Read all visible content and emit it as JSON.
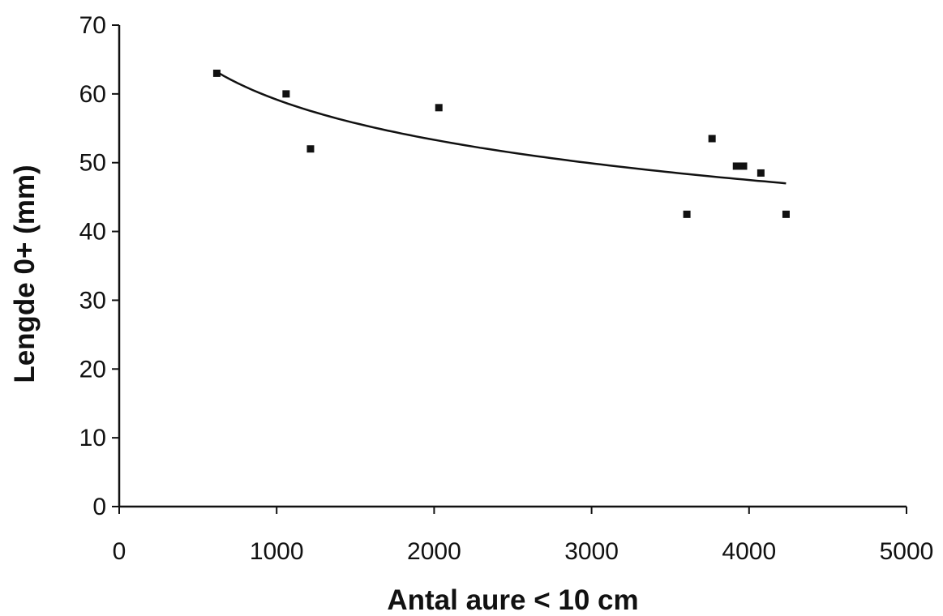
{
  "chart_data": {
    "type": "scatter",
    "title": "",
    "xlabel": "Antal aure < 10 cm",
    "ylabel": "Lengde 0+ (mm)",
    "xlim": [
      0,
      5000
    ],
    "ylim": [
      0,
      70
    ],
    "xticks": [
      0,
      1000,
      2000,
      3000,
      4000,
      5000
    ],
    "yticks": [
      0,
      10,
      20,
      30,
      40,
      50,
      60,
      70
    ],
    "grid": false,
    "legend": "none",
    "marker": "square",
    "color": "#111111",
    "points": [
      {
        "x": 620,
        "y": 63
      },
      {
        "x": 1060,
        "y": 60
      },
      {
        "x": 1215,
        "y": 52
      },
      {
        "x": 2030,
        "y": 58
      },
      {
        "x": 3605,
        "y": 42.5
      },
      {
        "x": 3765,
        "y": 53.5
      },
      {
        "x": 3920,
        "y": 49.5
      },
      {
        "x": 3965,
        "y": 49.5
      },
      {
        "x": 4075,
        "y": 48.5
      },
      {
        "x": 4235,
        "y": 42.5
      }
    ],
    "trendline": {
      "type": "logarithmic",
      "x_range": [
        620,
        4235
      ],
      "a": -8.43,
      "b": 117.4
    }
  }
}
